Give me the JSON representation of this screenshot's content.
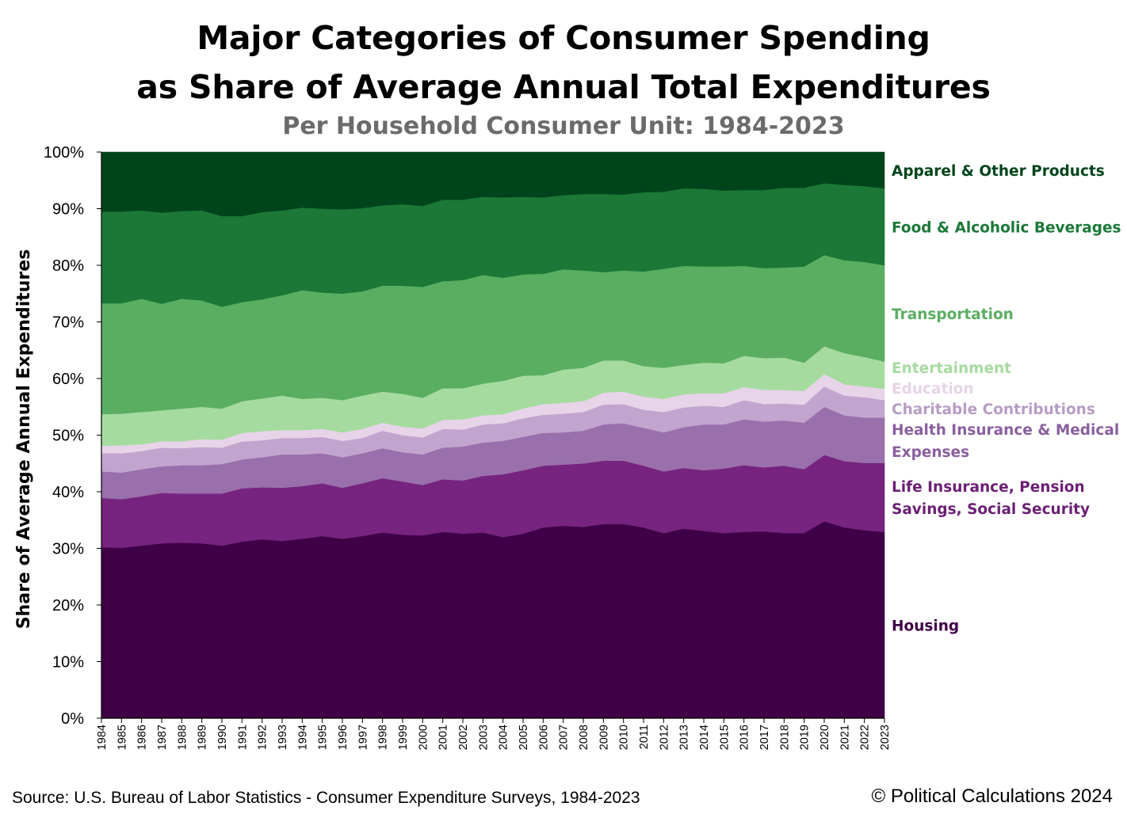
{
  "header": {
    "title_line1": "Major Categories of Consumer Spending",
    "title_line2": "as Share of Average Annual Total Expenditures",
    "subtitle": "Per Household Consumer Unit: 1984-2023"
  },
  "footer": {
    "source": "Source: U.S. Bureau of Labor Statistics - Consumer Expenditure Surveys, 1984-2023",
    "copyright": "© Political Calculations 2024"
  },
  "chart_data": {
    "type": "area",
    "stacked": true,
    "title": "Major Categories of Consumer Spending as Share of Average Annual Total Expenditures",
    "subtitle": "Per Household Consumer Unit: 1984-2023",
    "xlabel": "",
    "ylabel": "Share of Average Annual Expenditures",
    "ylim": [
      0,
      100
    ],
    "y_ticks": [
      "0%",
      "10%",
      "20%",
      "30%",
      "40%",
      "50%",
      "60%",
      "70%",
      "80%",
      "90%",
      "100%"
    ],
    "y_tick_values": [
      0,
      10,
      20,
      30,
      40,
      50,
      60,
      70,
      80,
      90,
      100
    ],
    "grid": false,
    "legend": "right, inline labels",
    "x": [
      1984,
      1985,
      1986,
      1987,
      1988,
      1989,
      1990,
      1991,
      1992,
      1993,
      1994,
      1995,
      1996,
      1997,
      1998,
      1999,
      2000,
      2001,
      2002,
      2003,
      2004,
      2005,
      2006,
      2007,
      2008,
      2009,
      2010,
      2011,
      2012,
      2013,
      2014,
      2015,
      2016,
      2017,
      2018,
      2019,
      2020,
      2021,
      2022,
      2023
    ],
    "series": [
      {
        "name": "Housing",
        "label_lines": [
          "Housing"
        ],
        "color": "#3f0047",
        "label_color": "#3f0047",
        "values": [
          30.2,
          30.1,
          30.5,
          30.9,
          31.0,
          30.9,
          30.5,
          31.2,
          31.6,
          31.3,
          31.7,
          32.2,
          31.7,
          32.2,
          32.8,
          32.4,
          32.3,
          32.9,
          32.6,
          32.8,
          32.0,
          32.6,
          33.7,
          34.0,
          33.8,
          34.3,
          34.3,
          33.7,
          32.7,
          33.5,
          33.1,
          32.7,
          32.9,
          33.0,
          32.7,
          32.7,
          34.8,
          33.7,
          33.2,
          32.9
        ]
      },
      {
        "name": "Life Insurance, Pension Savings, Social Security",
        "label_lines": [
          "Life Insurance, Pension",
          "Savings, Social Security"
        ],
        "color": "#76247f",
        "label_color": "#6b1f74",
        "values": [
          8.7,
          8.6,
          8.7,
          8.9,
          8.7,
          8.8,
          9.2,
          9.4,
          9.2,
          9.4,
          9.3,
          9.3,
          9.0,
          9.3,
          9.6,
          9.4,
          8.9,
          9.3,
          9.4,
          10.0,
          11.1,
          11.2,
          10.9,
          10.8,
          11.2,
          11.2,
          11.2,
          10.9,
          10.9,
          10.7,
          10.7,
          11.4,
          11.8,
          11.3,
          11.9,
          11.3,
          11.7,
          11.7,
          11.9,
          12.2
        ]
      },
      {
        "name": "Health Insurance & Medical Expenses",
        "label_lines": [
          "Health Insurance & Medical",
          "Expenses"
        ],
        "color": "#9970ab",
        "label_color": "#8a5f9e",
        "values": [
          4.7,
          4.7,
          4.8,
          4.7,
          5.0,
          5.0,
          5.2,
          5.1,
          5.3,
          5.9,
          5.6,
          5.3,
          5.4,
          5.3,
          5.3,
          5.2,
          5.4,
          5.6,
          6.0,
          5.9,
          5.9,
          5.9,
          5.8,
          5.7,
          5.8,
          6.4,
          6.6,
          6.7,
          6.9,
          7.2,
          8.1,
          7.8,
          8.1,
          8.1,
          8.0,
          8.2,
          8.5,
          8.1,
          8.0,
          8.0
        ]
      },
      {
        "name": "Charitable Contributions",
        "label_lines": [
          "Charitable Contributions"
        ],
        "color": "#c2a5cf",
        "label_color": "#b79cc4",
        "values": [
          3.2,
          3.4,
          3.2,
          3.3,
          3.0,
          3.2,
          2.9,
          3.2,
          3.0,
          2.9,
          2.9,
          2.9,
          2.9,
          2.7,
          3.1,
          3.0,
          3.0,
          3.3,
          3.0,
          3.2,
          3.1,
          3.3,
          3.2,
          3.3,
          3.3,
          3.5,
          3.4,
          3.2,
          3.6,
          3.5,
          3.3,
          3.1,
          3.4,
          3.1,
          3.0,
          3.2,
          3.6,
          3.5,
          3.6,
          3.1
        ]
      },
      {
        "name": "Education",
        "label_lines": [
          "Education"
        ],
        "color": "#e7d4e8",
        "label_color": "#e7d4e8",
        "values": [
          1.3,
          1.4,
          1.2,
          1.1,
          1.2,
          1.4,
          1.4,
          1.5,
          1.6,
          1.4,
          1.4,
          1.4,
          1.5,
          1.6,
          1.4,
          1.5,
          1.6,
          1.6,
          1.8,
          1.6,
          1.6,
          1.7,
          1.9,
          1.9,
          1.9,
          2.1,
          2.2,
          2.3,
          2.3,
          2.3,
          2.2,
          2.4,
          2.3,
          2.5,
          2.4,
          2.4,
          2.2,
          2.0,
          1.9,
          2.0
        ]
      },
      {
        "name": "Entertainment",
        "label_lines": [
          "Entertainment"
        ],
        "color": "#a6dba0",
        "label_color": "#a6dba0",
        "values": [
          5.6,
          5.6,
          5.7,
          5.5,
          5.8,
          5.7,
          5.5,
          5.6,
          5.8,
          6.1,
          5.5,
          5.5,
          5.7,
          5.9,
          5.5,
          5.8,
          5.4,
          5.6,
          5.5,
          5.6,
          5.9,
          5.8,
          5.1,
          5.9,
          5.9,
          5.7,
          5.5,
          5.4,
          5.5,
          5.2,
          5.4,
          5.3,
          5.5,
          5.6,
          5.7,
          5.0,
          4.9,
          5.5,
          5.2,
          4.8
        ]
      },
      {
        "name": "Transportation",
        "label_lines": [
          "Transportation"
        ],
        "color": "#5aae61",
        "label_color": "#5aae61",
        "values": [
          19.6,
          19.5,
          20.0,
          18.8,
          19.4,
          18.8,
          18.0,
          17.5,
          17.5,
          17.7,
          19.2,
          18.6,
          18.8,
          18.4,
          18.7,
          19.1,
          19.6,
          18.9,
          19.1,
          19.2,
          18.2,
          17.9,
          17.9,
          17.7,
          17.2,
          15.6,
          15.9,
          16.7,
          17.5,
          17.5,
          17.0,
          17.1,
          15.9,
          15.9,
          15.9,
          17.0,
          16.1,
          16.4,
          16.8,
          17.0
        ]
      },
      {
        "name": "Food & Alcoholic Beverages",
        "label_lines": [
          "Food & Alcoholic Beverages"
        ],
        "color": "#1b7837",
        "label_color": "#1b7837",
        "values": [
          16.2,
          16.2,
          15.6,
          16.1,
          15.5,
          15.9,
          16.0,
          15.2,
          15.4,
          15.0,
          14.6,
          14.8,
          14.9,
          14.7,
          14.2,
          14.4,
          14.3,
          14.4,
          14.2,
          13.8,
          14.2,
          13.7,
          13.5,
          13.1,
          13.5,
          13.8,
          13.4,
          14.0,
          13.6,
          13.7,
          13.7,
          13.4,
          13.4,
          13.8,
          14.1,
          13.9,
          12.7,
          13.3,
          13.4,
          13.6
        ]
      },
      {
        "name": "Apparel & Other Products",
        "label_lines": [
          "Apparel & Other Products"
        ],
        "color": "#00441b",
        "label_color": "#00441b",
        "values": [
          10.5,
          10.5,
          10.3,
          10.7,
          10.4,
          10.3,
          11.3,
          11.3,
          10.6,
          10.3,
          9.8,
          10.0,
          10.1,
          9.9,
          9.4,
          9.2,
          9.5,
          8.4,
          8.4,
          7.9,
          8.0,
          7.9,
          8.0,
          7.6,
          7.4,
          7.4,
          7.5,
          7.1,
          7.0,
          6.4,
          6.5,
          6.8,
          6.7,
          6.7,
          6.3,
          6.3,
          5.5,
          5.8,
          6.0,
          6.1
        ]
      }
    ]
  }
}
